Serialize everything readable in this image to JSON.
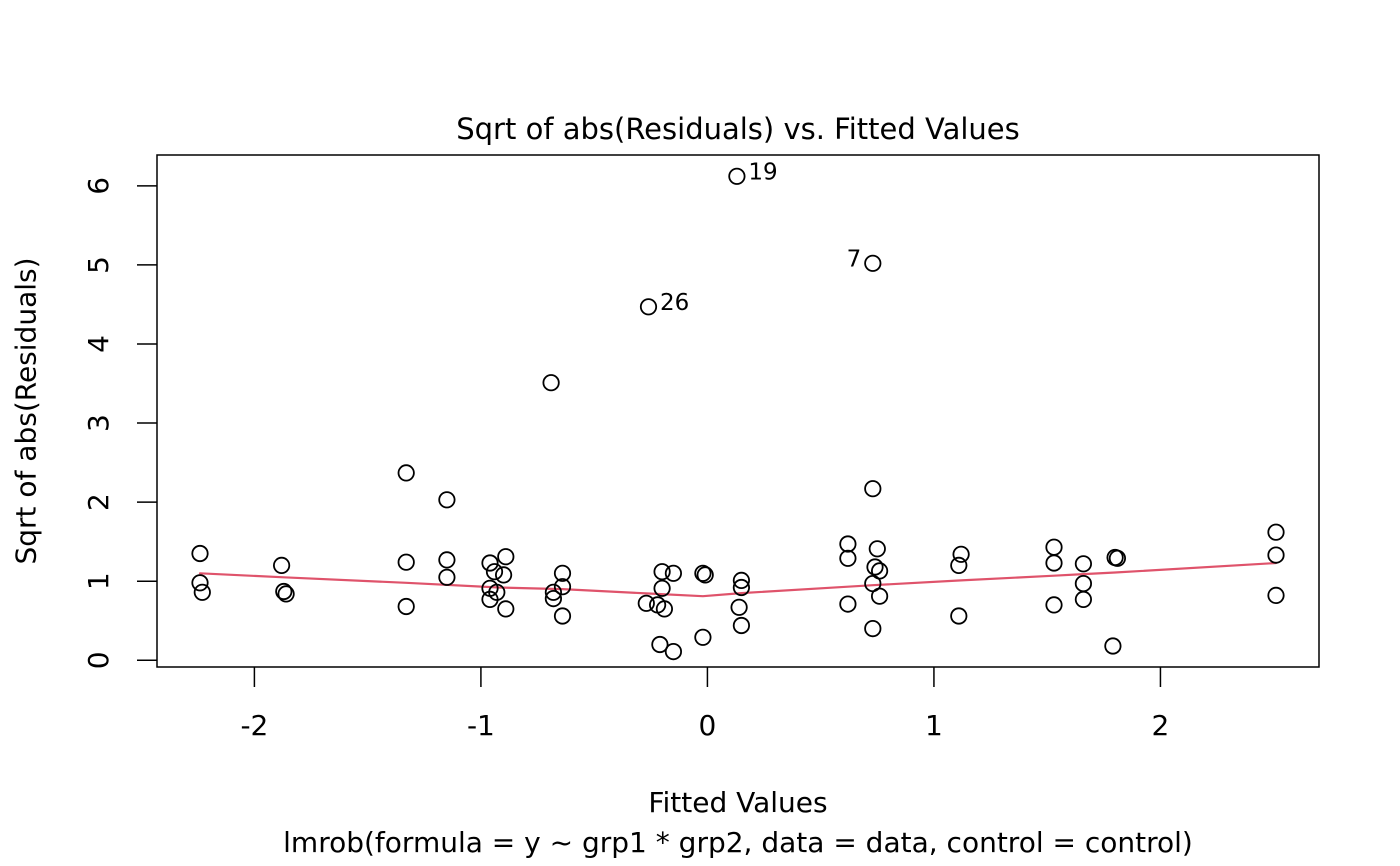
{
  "chart_data": {
    "type": "scatter",
    "title": "Sqrt of abs(Residuals) vs. Fitted Values",
    "xlabel": "Fitted Values",
    "ylabel": "Sqrt of abs(Residuals)",
    "subtitle": "lmrob(formula = y ~ grp1 * grp2, data = data, control = control)",
    "xlim": [
      -2.43,
      2.7
    ],
    "ylim": [
      -0.085,
      6.39
    ],
    "x_ticks": [
      -2,
      -1,
      0,
      1,
      2
    ],
    "y_ticks": [
      0,
      1,
      2,
      3,
      4,
      5,
      6
    ],
    "grid": false,
    "legend": "none",
    "point_color": "#000000",
    "line_color": "#DF536B",
    "points": [
      [
        -2.24,
        1.35
      ],
      [
        -2.24,
        0.98
      ],
      [
        -2.23,
        0.86
      ],
      [
        -1.88,
        1.2
      ],
      [
        -1.87,
        0.87
      ],
      [
        -1.86,
        0.84
      ],
      [
        -1.33,
        2.37
      ],
      [
        -1.33,
        1.24
      ],
      [
        -1.33,
        0.68
      ],
      [
        -1.15,
        2.03
      ],
      [
        -1.15,
        1.27
      ],
      [
        -1.15,
        1.05
      ],
      [
        -0.96,
        1.23
      ],
      [
        -0.89,
        1.31
      ],
      [
        -0.94,
        1.12
      ],
      [
        -0.9,
        1.08
      ],
      [
        -0.96,
        0.91
      ],
      [
        -0.93,
        0.86
      ],
      [
        -0.96,
        0.77
      ],
      [
        -0.89,
        0.65
      ],
      [
        -0.69,
        3.51
      ],
      [
        -0.64,
        1.1
      ],
      [
        -0.64,
        0.93
      ],
      [
        -0.68,
        0.86
      ],
      [
        -0.68,
        0.78
      ],
      [
        -0.64,
        0.56
      ],
      [
        -0.26,
        4.47
      ],
      [
        -0.2,
        1.12
      ],
      [
        -0.15,
        1.1
      ],
      [
        -0.2,
        0.91
      ],
      [
        -0.27,
        0.72
      ],
      [
        -0.22,
        0.7
      ],
      [
        -0.19,
        0.65
      ],
      [
        -0.21,
        0.2
      ],
      [
        -0.15,
        0.11
      ],
      [
        -0.02,
        1.1
      ],
      [
        -0.01,
        1.08
      ],
      [
        -0.02,
        0.29
      ],
      [
        0.13,
        6.12
      ],
      [
        0.15,
        1.01
      ],
      [
        0.15,
        0.92
      ],
      [
        0.14,
        0.67
      ],
      [
        0.15,
        0.44
      ],
      [
        0.62,
        1.47
      ],
      [
        0.62,
        1.29
      ],
      [
        0.62,
        0.71
      ],
      [
        0.73,
        5.02
      ],
      [
        0.73,
        2.17
      ],
      [
        0.75,
        1.41
      ],
      [
        0.74,
        1.18
      ],
      [
        0.76,
        1.13
      ],
      [
        0.73,
        0.97
      ],
      [
        0.76,
        0.81
      ],
      [
        0.73,
        0.4
      ],
      [
        1.12,
        1.34
      ],
      [
        1.11,
        1.2
      ],
      [
        1.11,
        0.56
      ],
      [
        1.53,
        1.43
      ],
      [
        1.53,
        1.23
      ],
      [
        1.53,
        0.7
      ],
      [
        1.66,
        1.22
      ],
      [
        1.66,
        0.97
      ],
      [
        1.66,
        0.77
      ],
      [
        1.8,
        1.3
      ],
      [
        1.81,
        1.29
      ],
      [
        1.79,
        0.18
      ],
      [
        2.51,
        1.62
      ],
      [
        2.51,
        1.33
      ],
      [
        2.51,
        0.82
      ]
    ],
    "labeled_points": [
      {
        "label": "19",
        "x": 0.13,
        "y": 6.12,
        "side": "right"
      },
      {
        "label": "7",
        "x": 0.73,
        "y": 5.02,
        "side": "left"
      },
      {
        "label": "26",
        "x": -0.26,
        "y": 4.47,
        "side": "right"
      }
    ],
    "smooth_line": [
      [
        -2.24,
        1.1
      ],
      [
        -1.87,
        1.05
      ],
      [
        -1.33,
        0.98
      ],
      [
        -0.92,
        0.92
      ],
      [
        -0.64,
        0.9
      ],
      [
        -0.26,
        0.845
      ],
      [
        -0.02,
        0.81
      ],
      [
        0.15,
        0.85
      ],
      [
        0.62,
        0.93
      ],
      [
        0.73,
        0.95
      ],
      [
        1.12,
        1.01
      ],
      [
        1.53,
        1.07
      ],
      [
        1.66,
        1.09
      ],
      [
        1.8,
        1.11
      ],
      [
        2.51,
        1.23
      ]
    ]
  }
}
